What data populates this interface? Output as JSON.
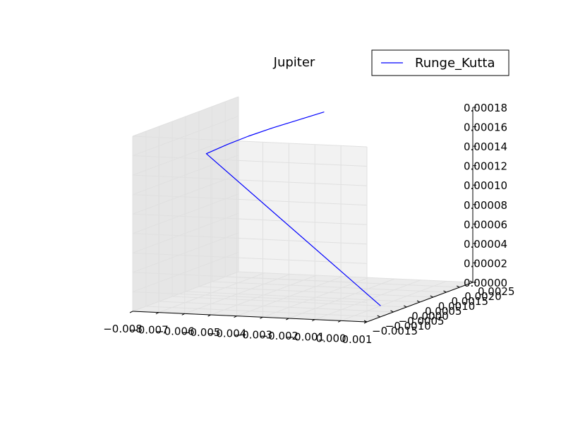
{
  "chart_data": {
    "type": "line",
    "title": "Jupiter",
    "projection": "3d",
    "grid": true,
    "legend_position": "top-right",
    "xlim": [
      -0.008,
      0.001
    ],
    "ylim": [
      -0.0015,
      0.0025
    ],
    "zlim": [
      0.0,
      0.00018
    ],
    "x_ticks": [
      "−0.008",
      "−0.007",
      "−0.006",
      "−0.005",
      "−0.004",
      "−0.003",
      "−0.002",
      "−0.001",
      "0.000",
      "0.001"
    ],
    "y_ticks": [
      "−0.0015",
      "−0.0010",
      "−0.0005",
      "0.0000",
      "0.0005",
      "0.0010",
      "0.0015",
      "0.0020",
      "0.0025"
    ],
    "z_ticks": [
      "0.00000",
      "0.00002",
      "0.00004",
      "0.00006",
      "0.00008",
      "0.00010",
      "0.00012",
      "0.00014",
      "0.00016",
      "0.00018"
    ],
    "series": [
      {
        "name": "Runge_Kutta",
        "color": "#0000ff",
        "points": [
          {
            "x": 0.0,
            "y": 0.0,
            "z": 0.0
          },
          {
            "x": -0.007,
            "y": 0.0003,
            "z": 0.000145
          },
          {
            "x": -0.0065,
            "y": 0.0006,
            "z": 0.000152
          },
          {
            "x": -0.006,
            "y": 0.0009,
            "z": 0.000158
          },
          {
            "x": -0.0054,
            "y": 0.00125,
            "z": 0.000164
          },
          {
            "x": -0.0048,
            "y": 0.0016,
            "z": 0.000169
          },
          {
            "x": -0.0042,
            "y": 0.002,
            "z": 0.000174
          }
        ]
      }
    ]
  }
}
